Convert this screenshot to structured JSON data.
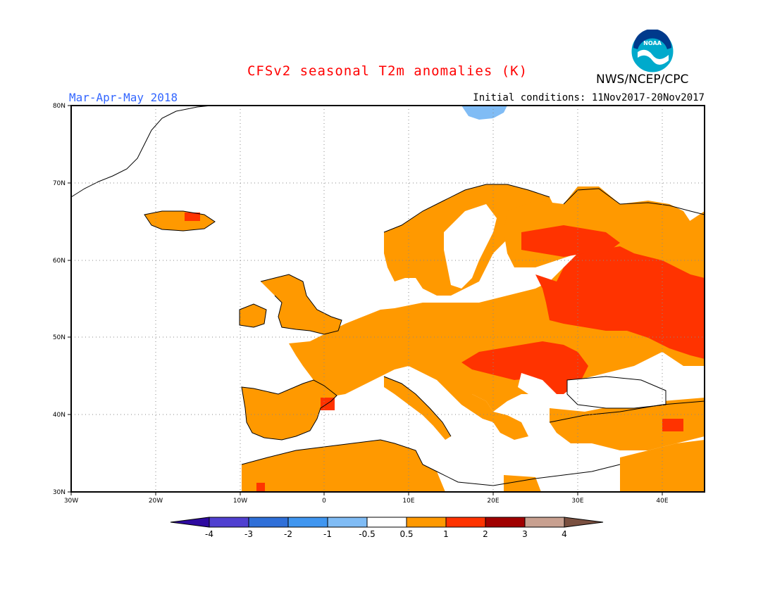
{
  "header": {
    "title": "CFSv2 seasonal T2m anomalies (K)",
    "season": "Mar-Apr-May 2018",
    "initial_conditions": "Initial conditions: 11Nov2017-20Nov2017",
    "agency": "NWS/NCEP/CPC",
    "logo_text": "NOAA",
    "title_color": "#ff0000",
    "season_color": "#3366ff"
  },
  "map": {
    "lat_labels": [
      "80N",
      "70N",
      "60N",
      "50N",
      "40N",
      "30N"
    ],
    "lon_labels": [
      "30W",
      "20W",
      "10W",
      "0",
      "10E",
      "20E",
      "30E",
      "40E"
    ],
    "region": "Europe",
    "lon_range": [
      -30,
      45
    ],
    "lat_range": [
      30,
      80
    ]
  },
  "colorbar": {
    "labels": [
      "-4",
      "-3",
      "-2",
      "-1",
      "-0.5",
      "0.5",
      "1",
      "2",
      "3",
      "4"
    ],
    "colors": [
      "#2e0aa0",
      "#5040d0",
      "#2f6fd8",
      "#4096f0",
      "#80bcf5",
      "#ffffff",
      "#ff9900",
      "#ff3300",
      "#a00000",
      "#c8a090",
      "#7a5040"
    ]
  }
}
